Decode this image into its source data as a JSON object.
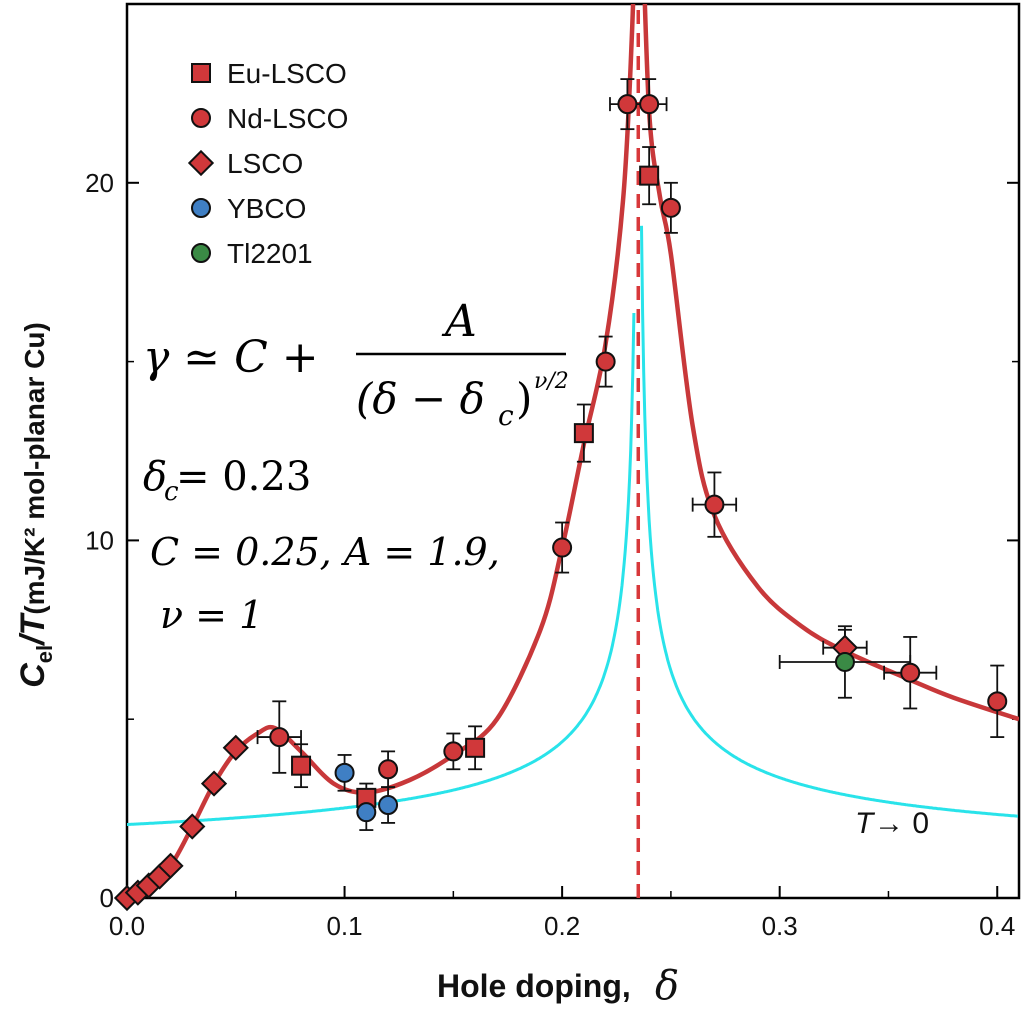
{
  "chart_data": {
    "type": "scatter",
    "xlabel": "Hole doping,",
    "xlabel_symbol": "δ",
    "ylabel_main": "C",
    "ylabel_sub": "el",
    "ylabel_rest": "/T",
    "ylabel_units": "(mJ/K² mol-planar Cu)",
    "xlim": [
      0.0,
      0.41
    ],
    "ylim": [
      0,
      25
    ],
    "x_ticks": [
      0.0,
      0.1,
      0.2,
      0.3,
      0.4
    ],
    "x_tick_labels": [
      "0.0",
      "0.1",
      "0.2",
      "0.3",
      "0.4"
    ],
    "y_ticks": [
      0,
      10,
      20
    ],
    "y_tick_labels": [
      "0",
      "10",
      "20"
    ],
    "legend_position": "top-left",
    "vertical_line": {
      "x": 0.235,
      "color": "#d8383a",
      "style": "dashed"
    },
    "colors": {
      "red": "#d0383a",
      "blue": "#3f7fc4",
      "green": "#3a8a45",
      "fit_red": "#c8383a",
      "fit_cyan": "#29e3ea"
    },
    "series": [
      {
        "name": "Eu-LSCO",
        "marker": "square",
        "color": "#d0383a",
        "points": [
          {
            "x": 0.08,
            "y": 3.7,
            "yerr": 0.6
          },
          {
            "x": 0.11,
            "y": 2.8,
            "yerr": 0.4
          },
          {
            "x": 0.16,
            "y": 4.2,
            "yerr": 0.6
          },
          {
            "x": 0.21,
            "y": 13.0,
            "yerr": 0.8
          },
          {
            "x": 0.24,
            "y": 20.2,
            "yerr": 0.8
          }
        ]
      },
      {
        "name": "Nd-LSCO",
        "marker": "circle",
        "color": "#d0383a",
        "points": [
          {
            "x": 0.07,
            "y": 4.5,
            "yerr": 1.0,
            "xerr": 0.01
          },
          {
            "x": 0.12,
            "y": 3.6,
            "yerr": 0.5
          },
          {
            "x": 0.15,
            "y": 4.1,
            "yerr": 0.5
          },
          {
            "x": 0.2,
            "y": 9.8,
            "yerr": 0.7
          },
          {
            "x": 0.22,
            "y": 15.0,
            "yerr": 0.7
          },
          {
            "x": 0.23,
            "y": 22.2,
            "yerr": 0.7,
            "xerr": 0.008
          },
          {
            "x": 0.24,
            "y": 22.2,
            "yerr": 0.7,
            "xerr": 0.008
          },
          {
            "x": 0.25,
            "y": 19.3,
            "yerr": 0.7
          },
          {
            "x": 0.27,
            "y": 11.0,
            "yerr": 0.9,
            "xerr": 0.01
          },
          {
            "x": 0.36,
            "y": 6.3,
            "yerr": 1.0,
            "xerr": 0.012
          },
          {
            "x": 0.4,
            "y": 5.5,
            "yerr": 1.0
          }
        ]
      },
      {
        "name": "LSCO",
        "marker": "diamond",
        "color": "#d0383a",
        "points": [
          {
            "x": 0.0,
            "y": 0.0
          },
          {
            "x": 0.005,
            "y": 0.15
          },
          {
            "x": 0.01,
            "y": 0.35
          },
          {
            "x": 0.015,
            "y": 0.6
          },
          {
            "x": 0.02,
            "y": 0.9
          },
          {
            "x": 0.03,
            "y": 2.0
          },
          {
            "x": 0.04,
            "y": 3.2
          },
          {
            "x": 0.05,
            "y": 4.2
          },
          {
            "x": 0.33,
            "y": 7.0,
            "yerr": 0.5,
            "xerr": 0.01
          }
        ]
      },
      {
        "name": "YBCO",
        "marker": "circle",
        "color": "#3f7fc4",
        "points": [
          {
            "x": 0.1,
            "y": 3.5,
            "yerr": 0.5
          },
          {
            "x": 0.11,
            "y": 2.4,
            "yerr": 0.5
          },
          {
            "x": 0.12,
            "y": 2.6,
            "yerr": 0.5
          }
        ]
      },
      {
        "name": "Tl2201",
        "marker": "circle",
        "color": "#3a8a45",
        "points": [
          {
            "x": 0.33,
            "y": 6.6,
            "yerr": 1.0,
            "xerr": 0.03
          }
        ]
      }
    ],
    "fit_curves": {
      "cyan": {
        "delta_c": 0.23,
        "C": 0.25,
        "A": 1.9,
        "nu": 1
      },
      "red": {
        "delta_c": 0.235
      }
    },
    "annotations": {
      "eq_gamma": "γ ≃ C +",
      "eq_numerator": "A",
      "eq_denominator": "(δ − δ",
      "eq_denominator_sub": "c",
      "eq_denominator_close": ")",
      "eq_exponent": "ν/2",
      "delta_c_line": "δ",
      "delta_c_sub": "c",
      "delta_c_value": " = 0.23",
      "params_line": "C = 0.25,  A = 1.9,",
      "nu_line": "ν = 1",
      "temp_T": "T",
      "temp_arrow": " → 0"
    }
  }
}
